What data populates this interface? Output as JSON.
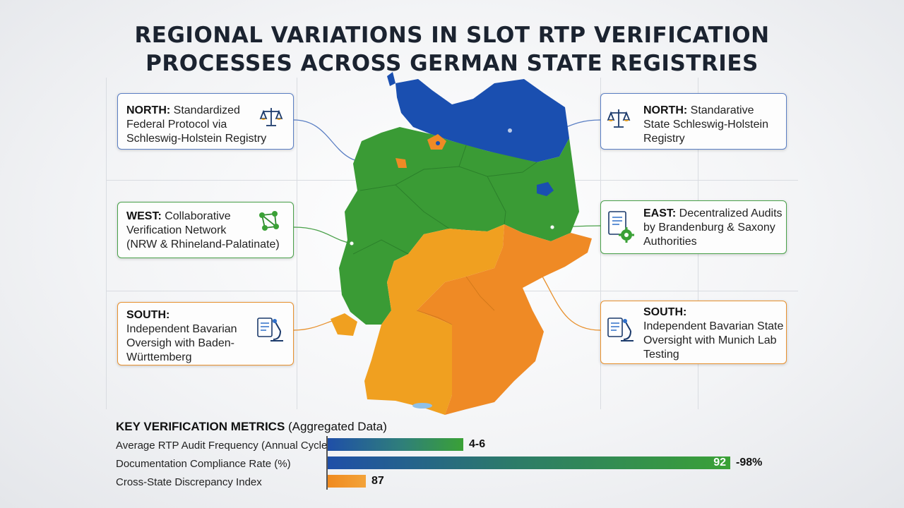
{
  "title": {
    "line1": "REGIONAL VARIATIONS IN SLOT RTP VERIFICATION",
    "line2": "PROCESSES ACROSS GERMAN STATE REGISTRIES"
  },
  "cards": {
    "north_left": {
      "label": "NORTH:",
      "text1": " Standardized",
      "text2": "Federal Protocol via",
      "text3": "Schleswig-Holstein Registry",
      "icon": "scales-icon"
    },
    "west": {
      "label": "WEST:",
      "text1": " Collaborative",
      "text2": "Verification Network",
      "text3": "(NRW & Rhineland-Palatinate)",
      "icon": "network-icon"
    },
    "south_left": {
      "label": "SOUTH:",
      "text1": "Independent Bavarian",
      "text2": "Oversigh with Baden-",
      "text3": "Württemberg",
      "icon": "microscope-icon"
    },
    "north_right": {
      "label": "NORTH:",
      "text1": " Standarative",
      "text2": "State Schleswig-Holstein",
      "text3": "Registry",
      "icon": "scales-icon"
    },
    "east": {
      "label": "EAST:",
      "text1": " Decentralized Audits",
      "text2": "by Brandenburg & Saxony",
      "text3": "Authorities",
      "icon": "document-gear-icon"
    },
    "south_right": {
      "label": "SOUTH:",
      "text1": "Independent Bavarian State",
      "text2": "Oversight with Munich Lab",
      "text3": "Testing",
      "icon": "microscope-icon"
    }
  },
  "metrics": {
    "title_bold": "KEY VERIFICATION METRICS",
    "title_rest": " (Aggregated Data)",
    "rows": [
      {
        "label": "Average RTP Audit Frequency (Annual Cycles)",
        "value": "4-6",
        "fill": 0.32
      },
      {
        "label": "Documentation Compliance Rate (%)",
        "value_inner": "92",
        "value": "-98%",
        "fill": 0.95
      },
      {
        "label": "Cross-State Discrepancy Index",
        "value": "87",
        "fill": 0.09
      }
    ]
  },
  "colors": {
    "north": "#1a4fb0",
    "west_center": "#3a9b35",
    "south_west": "#f0a020",
    "south_east": "#ef8a25",
    "city": "#ef8a25",
    "bar_blue": "#1f4fa8",
    "bar_green": "#3aa136",
    "bar_orange": "#f08a1f",
    "card_border_blue": "#5b7fc4",
    "card_border_green": "#4aa14a",
    "card_border_orange": "#e8912e"
  }
}
